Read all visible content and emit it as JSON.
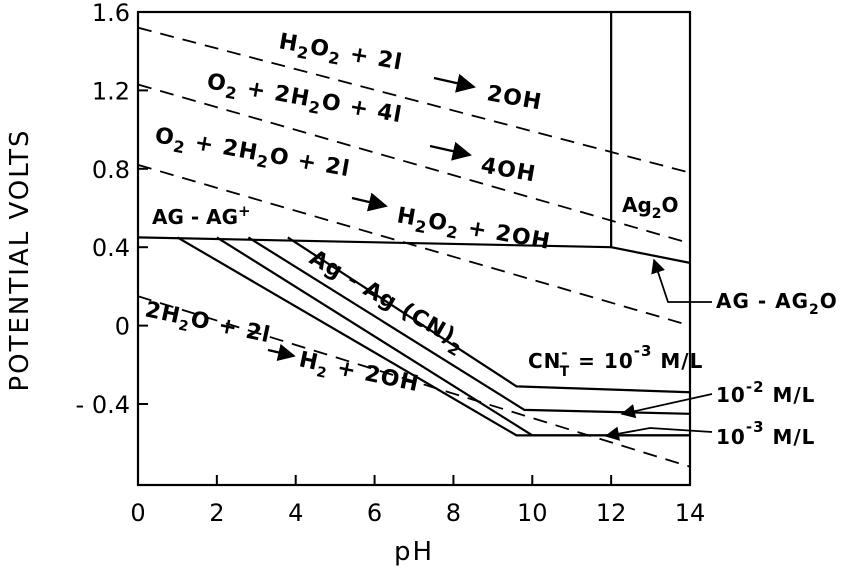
{
  "chart_data": {
    "type": "line",
    "title": "",
    "xlabel": "pH",
    "ylabel": "POTENTIAL  VOLTS",
    "xlim": [
      0,
      14
    ],
    "ylim": [
      -0.7,
      1.6
    ],
    "xticks": [
      0,
      2,
      4,
      6,
      8,
      10,
      12,
      14
    ],
    "xtick_labels": [
      "0",
      "2",
      "4",
      "6",
      "8",
      "10",
      "12",
      "14"
    ],
    "yticks": [
      1.6,
      1.2,
      0.8,
      0.4,
      0,
      -0.4
    ],
    "ytick_labels": [
      "1.6",
      "1.2",
      "0.8",
      "0.4",
      "0",
      "- 0.4"
    ],
    "dashed_lines": [
      {
        "name": "H2O2 + 2e -> 2OH",
        "x": [
          0,
          14
        ],
        "y": [
          1.52,
          0.78
        ]
      },
      {
        "name": "O2 + 2H2O + 4e -> 4OH",
        "x": [
          0,
          14
        ],
        "y": [
          1.23,
          0.42
        ]
      },
      {
        "name": "O2 + 2H2O + 2e -> H2O2 + 2OH",
        "x": [
          0,
          14
        ],
        "y": [
          0.82,
          0.0
        ]
      },
      {
        "name": "2H2O + 2e -> H2 + 2OH",
        "x": [
          0,
          14
        ],
        "y": [
          0.15,
          -0.72
        ]
      }
    ],
    "series": [
      {
        "name": "Ag-Ag+",
        "x": [
          0,
          12
        ],
        "y": [
          0.45,
          0.4
        ]
      },
      {
        "name": "Ag-Ag2O",
        "x": [
          12,
          14
        ],
        "y": [
          0.4,
          0.32
        ]
      },
      {
        "name": "Ag2O boundary",
        "x": [
          12,
          12
        ],
        "y": [
          0.4,
          1.6
        ]
      },
      {
        "name": "Ag-Ag(CN)2 CNT=10^-3 M/L upper",
        "x": [
          3.8,
          9.6,
          14
        ],
        "y": [
          0.45,
          -0.31,
          -0.34
        ]
      },
      {
        "name": "Ag-Ag(CN)2 10^-2 M/L",
        "x": [
          2.8,
          9.8,
          14
        ],
        "y": [
          0.45,
          -0.43,
          -0.45
        ]
      },
      {
        "name": "Ag-Ag(CN)2 10^-3 M/L lower",
        "x": [
          2.0,
          10.0,
          14
        ],
        "y": [
          0.45,
          -0.56,
          -0.56
        ]
      },
      {
        "name": "Ag-Ag(CN)2 left",
        "x": [
          1.0,
          9.6,
          14
        ],
        "y": [
          0.45,
          -0.56,
          -0.56
        ]
      }
    ],
    "labels": {
      "h2o2": {
        "a": "H",
        "b": "2",
        "c": "O",
        "d": "2",
        "e": " + 2",
        "f": "l",
        "g": "2OH"
      },
      "o2_4e": {
        "a": "O",
        "b": "2",
        "c": " + 2H",
        "d": "2",
        "e": "O + 4",
        "f": "l",
        "g": "4OH"
      },
      "o2_2e": {
        "a": "O",
        "b": "2",
        "c": " + 2H",
        "d": "2",
        "e": "O + 2",
        "f": "l",
        "g": "H",
        "h": "2",
        "i": "O",
        "j": "2",
        "k": " + 2OH"
      },
      "h2": {
        "a": "2H",
        "b": "2",
        "c": "O + 2",
        "d": "l",
        "e": "H",
        "f": "2",
        "g": " + 2OH"
      },
      "ag_ag_plus": {
        "a": "AG - AG",
        "b": "+"
      },
      "ag2o": {
        "a": "Ag",
        "b": "2",
        "c": "O"
      },
      "ag_ag2o": {
        "a": "AG - AG",
        "b": "2",
        "c": "O"
      },
      "ag_cn": {
        "a": "Ag - Ag (CN)",
        "b": "2"
      },
      "cn_t": {
        "a": "CN",
        "b": "-",
        "c": "T",
        "d": " = 10",
        "e": "-3",
        "f": " M/L"
      },
      "m2": {
        "a": "10",
        "b": "-2",
        "c": " M/L"
      },
      "m3": {
        "a": "10",
        "b": "-3",
        "c": " M/L"
      }
    }
  }
}
